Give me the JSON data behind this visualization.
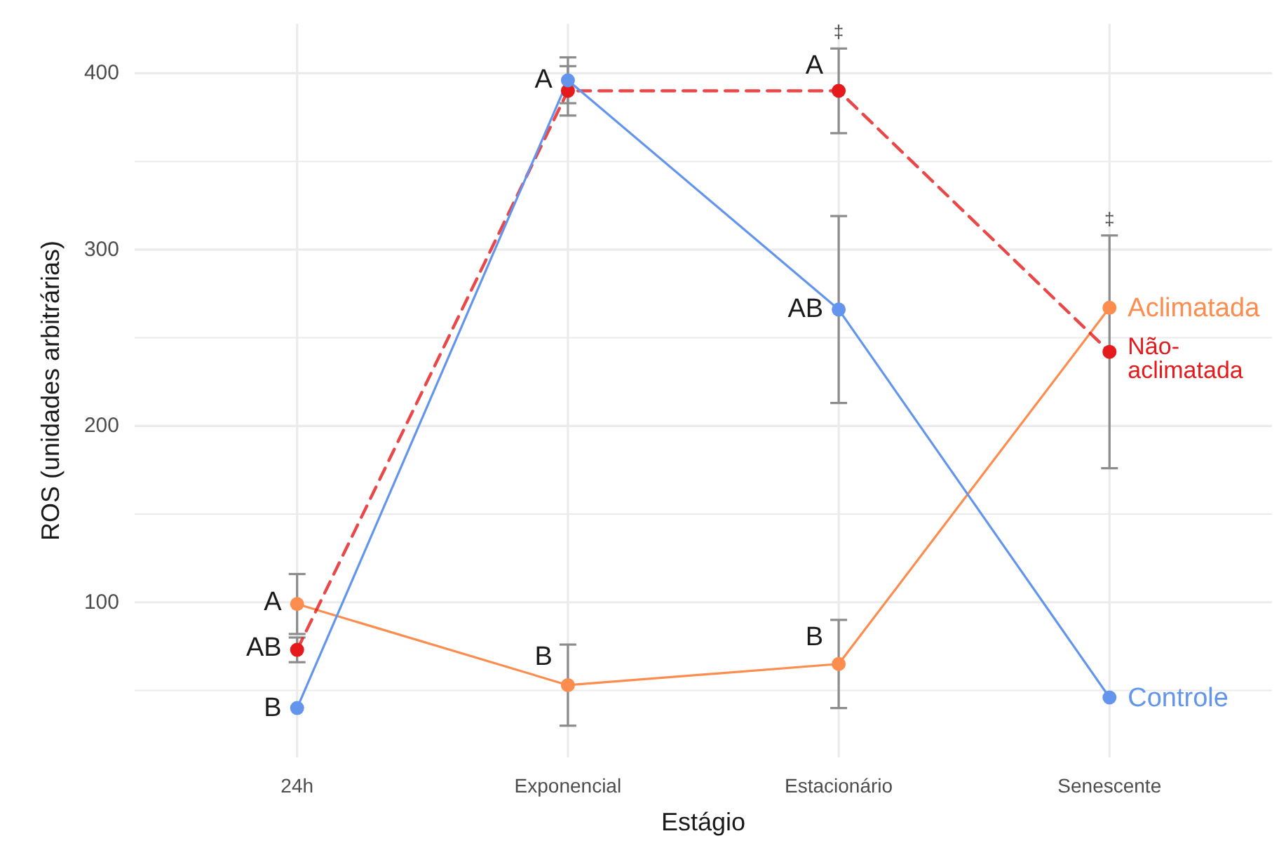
{
  "chart_data": {
    "type": "line",
    "xlabel": "Estágio",
    "ylabel": "ROS (unidades arbitrárias)",
    "categories": [
      "24h",
      "Exponencial",
      "Estacionário",
      "Senescente"
    ],
    "series": [
      {
        "name": "Aclimatada",
        "color": "#fd8d4f",
        "values": [
          99,
          53,
          65,
          267
        ],
        "errors": [
          17,
          23,
          25,
          null
        ],
        "line_style": "solid"
      },
      {
        "name": "Não-aclimatada",
        "color": "#e41a1c",
        "values": [
          73,
          390,
          390,
          242
        ],
        "errors": [
          7,
          14,
          24,
          66
        ],
        "line_style": "dashed"
      },
      {
        "name": "Controle",
        "color": "#6495ed",
        "values": [
          40,
          396,
          266,
          46
        ],
        "errors": [
          null,
          13,
          53,
          null
        ],
        "line_style": "solid"
      }
    ],
    "ylim": [
      12,
      428
    ],
    "yticks": [
      {
        "value": 50,
        "label": null
      },
      100,
      {
        "value": 150,
        "label": null
      },
      200,
      {
        "value": 250,
        "label": null
      },
      300,
      {
        "value": 350,
        "label": null
      },
      400
    ],
    "grid": true,
    "marker": "circle",
    "annotations": [
      {
        "text": "A",
        "x": "24h",
        "y": 100
      },
      {
        "text": "AB",
        "x": "24h",
        "y": 74
      },
      {
        "text": "B",
        "x": "24h",
        "y": 40
      },
      {
        "text": "B",
        "x": "Exponencial",
        "y": 69
      },
      {
        "text": "A",
        "x": "Exponencial",
        "y": 396
      },
      {
        "text": "A",
        "x": "Estacionário",
        "y": 404
      },
      {
        "text": "AB",
        "x": "Estacionário",
        "y": 266
      },
      {
        "text": "B",
        "x": "Estacionário",
        "y": 80
      },
      "‡",
      "‡"
    ]
  }
}
